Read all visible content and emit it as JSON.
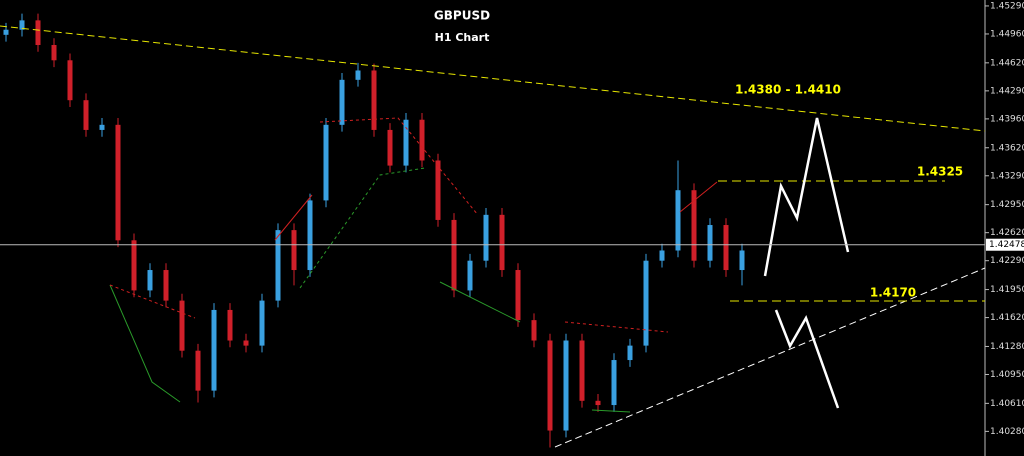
{
  "chart_data": {
    "type": "candlestick",
    "title": "GBPUSD",
    "subtitle": "H1 Chart",
    "up_color": "#3aa0e0",
    "down_color": "#d0202a",
    "ylim": [
      1.3999,
      1.4536
    ],
    "yticks": [
      {
        "value": 1.4529,
        "label": "1.45290"
      },
      {
        "value": 1.4496,
        "label": "1.44960"
      },
      {
        "value": 1.4462,
        "label": "1.44620"
      },
      {
        "value": 1.4429,
        "label": "1.44290"
      },
      {
        "value": 1.4396,
        "label": "1.43960"
      },
      {
        "value": 1.4362,
        "label": "1.43620"
      },
      {
        "value": 1.4329,
        "label": "1.43290"
      },
      {
        "value": 1.4295,
        "label": "1.42950"
      },
      {
        "value": 1.4262,
        "label": "1.42620"
      },
      {
        "value": 1.4229,
        "label": "1.42290"
      },
      {
        "value": 1.4195,
        "label": "1.41950"
      },
      {
        "value": 1.4162,
        "label": "1.41620"
      },
      {
        "value": 1.4128,
        "label": "1.41280"
      },
      {
        "value": 1.4095,
        "label": "1.40950"
      },
      {
        "value": 1.4061,
        "label": "1.40610"
      },
      {
        "value": 1.4028,
        "label": "1.40280"
      }
    ],
    "price_line": {
      "value": 1.42478,
      "label": "1.42478"
    },
    "annotations": [
      "1.4380 - 1.4410",
      "1.4325",
      "1.4170"
    ],
    "open": [
      1.4495,
      1.4501,
      1.4512,
      1.4483,
      1.4465,
      1.4418,
      1.4383,
      1.4389,
      1.4253,
      1.4194,
      1.4218,
      1.4182,
      1.4123,
      1.4076,
      1.4171,
      1.4135,
      1.4129,
      1.4182,
      1.4265,
      1.4218,
      1.43,
      1.4389,
      1.4442,
      1.4453,
      1.4383,
      1.4341,
      1.4395,
      1.4347,
      1.4277,
      1.4194,
      1.4229,
      1.4283,
      1.4218,
      1.4159,
      1.4135,
      1.4029,
      1.4135,
      1.4064,
      1.4059,
      1.4112,
      1.4129,
      1.4229,
      1.4241,
      1.4312,
      1.4229,
      1.4271,
      1.4218
    ],
    "high": [
      1.4509,
      1.452,
      1.452,
      1.4491,
      1.4473,
      1.4426,
      1.4397,
      1.4397,
      1.4261,
      1.4226,
      1.4226,
      1.419,
      1.4131,
      1.4179,
      1.4179,
      1.4143,
      1.419,
      1.4273,
      1.4273,
      1.4308,
      1.4397,
      1.445,
      1.4462,
      1.4461,
      1.4391,
      1.4403,
      1.4403,
      1.4355,
      1.4285,
      1.4237,
      1.4291,
      1.4291,
      1.4226,
      1.4167,
      1.4143,
      1.4143,
      1.4143,
      1.4072,
      1.412,
      1.4137,
      1.4237,
      1.4249,
      1.4347,
      1.432,
      1.4279,
      1.4279,
      1.4249
    ],
    "low": [
      1.4487,
      1.4493,
      1.4475,
      1.4457,
      1.441,
      1.4375,
      1.4375,
      1.4245,
      1.4186,
      1.4186,
      1.4174,
      1.4115,
      1.4062,
      1.4068,
      1.4127,
      1.4121,
      1.4121,
      1.4174,
      1.42,
      1.421,
      1.4292,
      1.4381,
      1.4434,
      1.4375,
      1.4333,
      1.4333,
      1.4339,
      1.4269,
      1.4186,
      1.4186,
      1.4221,
      1.421,
      1.4151,
      1.4127,
      1.4009,
      1.4021,
      1.4056,
      1.4051,
      1.4051,
      1.4104,
      1.4121,
      1.4221,
      1.4233,
      1.4221,
      1.4221,
      1.421,
      1.42
    ],
    "close": [
      1.4501,
      1.4512,
      1.4483,
      1.4465,
      1.4418,
      1.4383,
      1.4389,
      1.4253,
      1.4194,
      1.4218,
      1.4182,
      1.4123,
      1.4076,
      1.4171,
      1.4135,
      1.4129,
      1.4182,
      1.4265,
      1.4218,
      1.43,
      1.4389,
      1.4442,
      1.4453,
      1.4383,
      1.4341,
      1.4395,
      1.4347,
      1.4277,
      1.4194,
      1.4229,
      1.4283,
      1.4218,
      1.4159,
      1.4135,
      1.4029,
      1.4135,
      1.4064,
      1.4059,
      1.4112,
      1.4129,
      1.4229,
      1.4241,
      1.4312,
      1.4229,
      1.4271,
      1.4218,
      1.4241
    ]
  }
}
